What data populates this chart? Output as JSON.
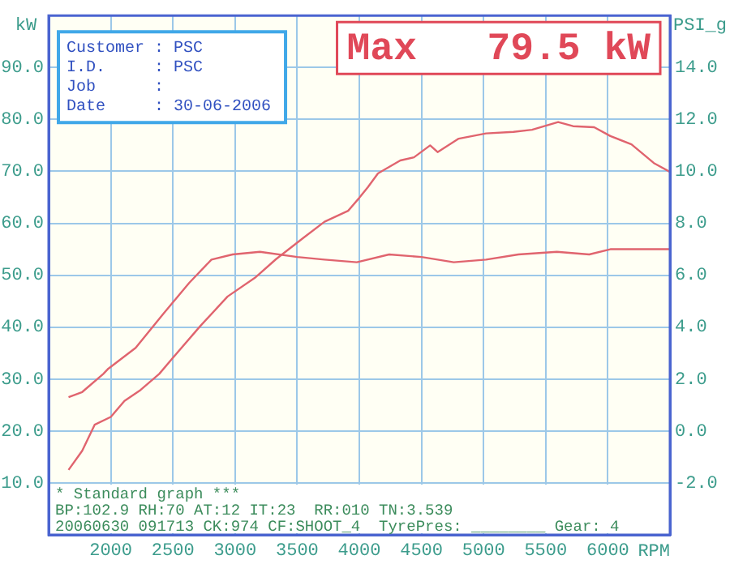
{
  "chart_data": {
    "type": "line",
    "xlabel": "RPM",
    "ylabel": "kW",
    "y2label": "PSI_g",
    "xlim": [
      1500,
      6500
    ],
    "xticks": [
      2000,
      2500,
      3000,
      3500,
      4000,
      4500,
      5000,
      5500,
      6000
    ],
    "ylim": [
      0,
      100
    ],
    "yticks": [
      {
        "value": 10,
        "label": "10.0"
      },
      {
        "value": 20,
        "label": "20.0"
      },
      {
        "value": 30,
        "label": "30.0"
      },
      {
        "value": 40,
        "label": "40.0"
      },
      {
        "value": 50,
        "label": "50.0"
      },
      {
        "value": 60,
        "label": "60.0"
      },
      {
        "value": 70,
        "label": "70.0"
      },
      {
        "value": 80,
        "label": "80.0"
      },
      {
        "value": 90,
        "label": "90.0"
      }
    ],
    "y2lim": [
      -4,
      16
    ],
    "y2ticks": [
      {
        "value": -2,
        "label": "-2.0"
      },
      {
        "value": 0,
        "label": "0.0"
      },
      {
        "value": 2,
        "label": "2.0"
      },
      {
        "value": 4,
        "label": "4.0"
      },
      {
        "value": 6,
        "label": "6.0"
      },
      {
        "value": 8,
        "label": "8.0"
      },
      {
        "value": 10,
        "label": "10.0"
      },
      {
        "value": 12,
        "label": "12.0"
      },
      {
        "value": 14,
        "label": "14.0"
      }
    ],
    "grid": true,
    "legend": false,
    "marker": "none",
    "line_style": "solid",
    "series": [
      {
        "color": "#e0646e",
        "x": [
          1660,
          1770,
          1870,
          2000,
          2110,
          2240,
          2390,
          2500,
          2720,
          2940,
          3160,
          3330,
          3550,
          3720,
          3910,
          4000,
          4070,
          4150,
          4330,
          4440,
          4570,
          4630,
          4800,
          5020,
          5240,
          5390,
          5600,
          5720,
          5890,
          6020,
          6190,
          6370,
          6500
        ],
        "values": [
          12.5,
          16.2,
          21.2,
          22.7,
          25.8,
          27.9,
          31.0,
          34.1,
          40.2,
          45.9,
          49.5,
          53.1,
          57.2,
          60.3,
          62.4,
          64.9,
          67.0,
          69.6,
          72.1,
          72.7,
          75.0,
          73.7,
          76.3,
          77.3,
          77.6,
          78.0,
          79.5,
          78.7,
          78.5,
          76.8,
          75.2,
          71.6,
          69.9
        ]
      },
      {
        "color": "#e0646e",
        "axis": "y2",
        "x": [
          1660,
          1770,
          1940,
          1980,
          2200,
          2420,
          2630,
          2810,
          2980,
          3200,
          3500,
          3720,
          3980,
          4240,
          4500,
          4760,
          5020,
          5280,
          5590,
          5850,
          6020,
          6500
        ],
        "values": [
          1.3,
          1.5,
          2.2,
          2.4,
          3.2,
          4.5,
          5.7,
          6.6,
          6.8,
          6.9,
          6.7,
          6.6,
          6.5,
          6.8,
          6.7,
          6.5,
          6.6,
          6.8,
          6.9,
          6.8,
          7.0,
          7.0
        ]
      }
    ],
    "annotations": [
      "Max   79.5 kW",
      "Customer : PSC",
      "I.D.     : PSC",
      "Job      :",
      "Date     : 30-06-2006",
      "* Standard graph ***",
      "BP:102.9 RH:70 AT:12 IT:23  RR:010 TN:3.539",
      "20060630 091713 CK:974 CF:SHOOT_4  TyrePres: ________ Gear: 4"
    ]
  }
}
